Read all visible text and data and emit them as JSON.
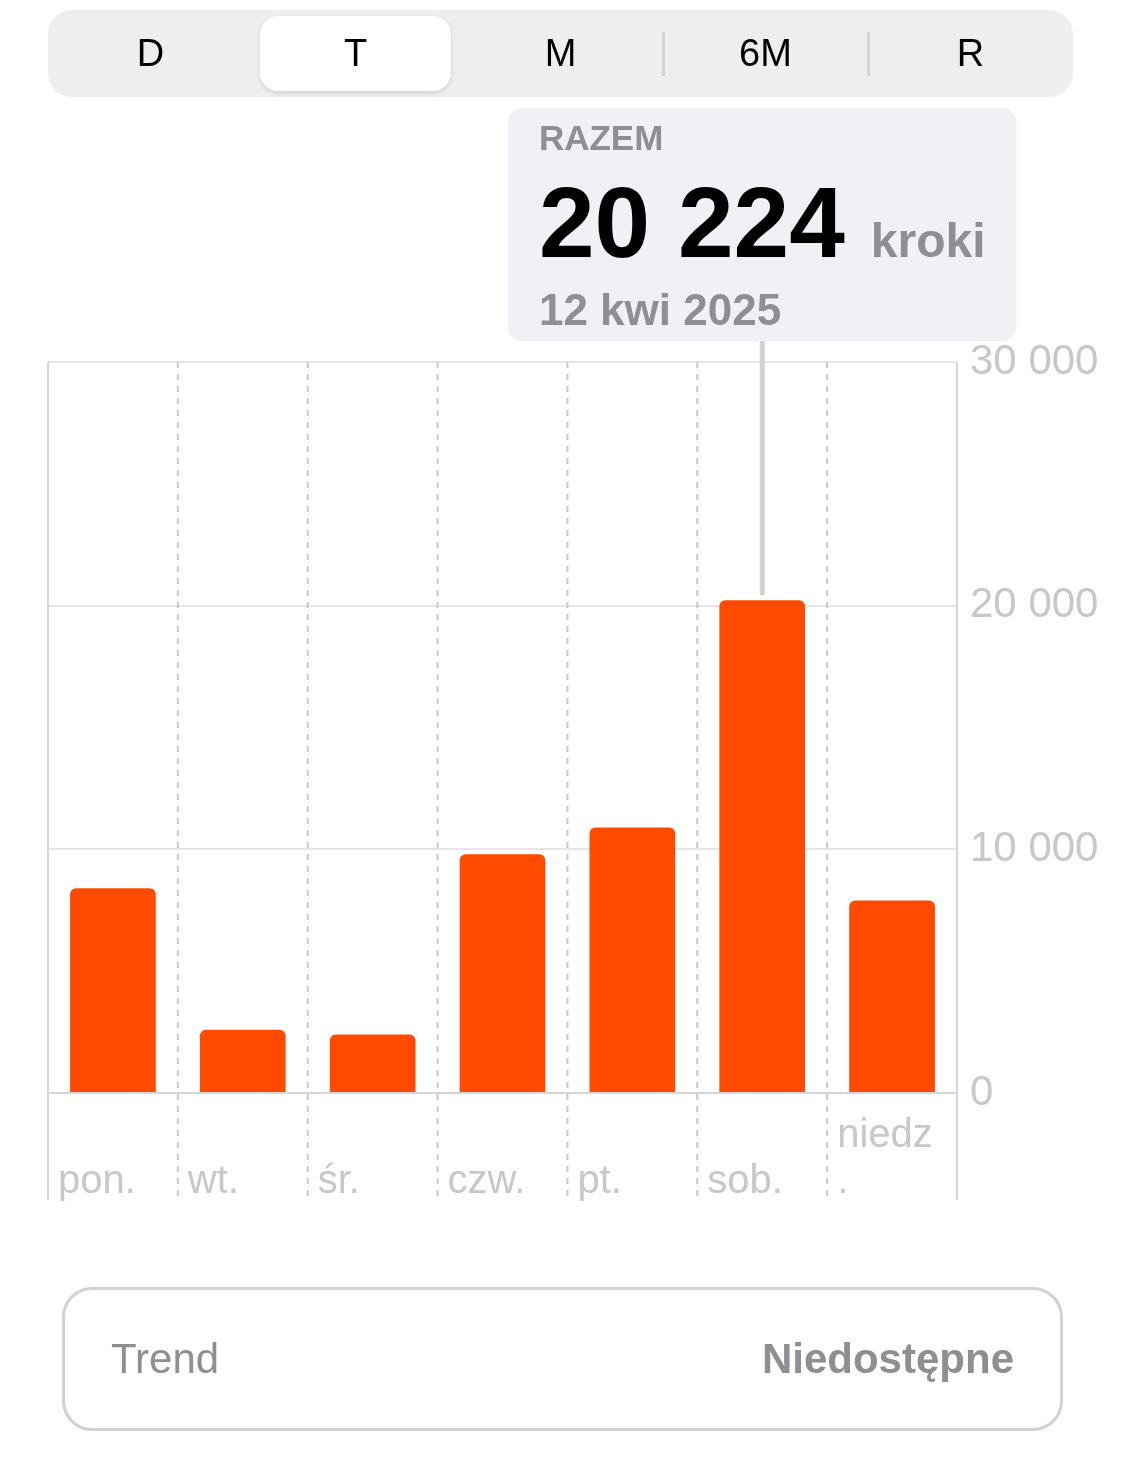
{
  "chart_data": {
    "type": "bar",
    "categories": [
      "pon.",
      "wt.",
      "śr.",
      "czw.",
      "pt.",
      "sob.",
      "niedz."
    ],
    "values": [
      8400,
      2600,
      2400,
      9800,
      10900,
      20224,
      7900
    ],
    "color": "#ff4a00",
    "ylim": [
      0,
      30000
    ],
    "yticks": [
      0,
      {
        "value": 10000,
        "label": "10 000"
      },
      {
        "value": 20000,
        "label": "20 000"
      },
      {
        "value": 30000,
        "label": "30 000"
      }
    ],
    "grid": true,
    "ref_lines": [
      {
        "axis": "x",
        "value": "sob.",
        "color": "#d1d1d6"
      }
    ],
    "annotations": [
      "D",
      "T",
      "M",
      "6M",
      "R",
      "RAZEM",
      "20 224",
      "kroki",
      "12 kwi 2025",
      "Trend",
      "Niedostępne"
    ]
  }
}
